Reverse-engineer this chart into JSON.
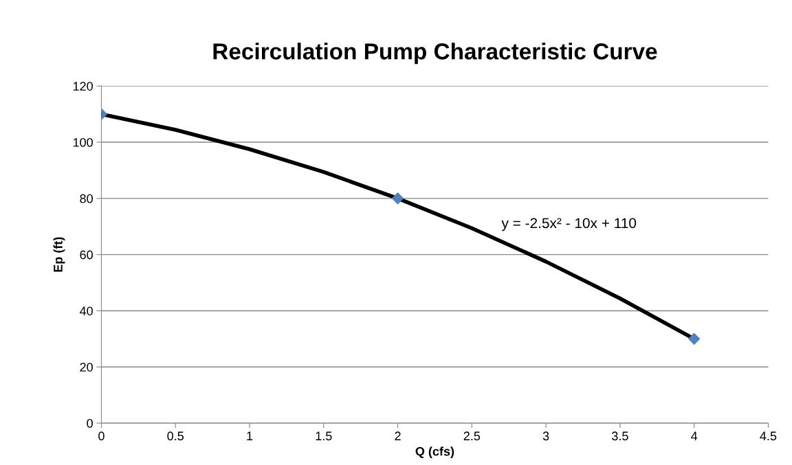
{
  "chart_data": {
    "type": "scatter",
    "title": "Recirculation Pump Characteristic Curve",
    "xlabel": "Q (cfs)",
    "ylabel": "Ep (ft)",
    "x": [
      0,
      2,
      4
    ],
    "series": [
      {
        "type": "line",
        "color": "#000000",
        "marker": "none",
        "x": [
          0,
          0.5,
          1,
          1.5,
          2,
          2.5,
          3,
          3.5,
          4
        ],
        "values": [
          110,
          104.4,
          97.5,
          89.4,
          80,
          69.4,
          57.5,
          44.4,
          30
        ]
      },
      {
        "color": "#4f81bd",
        "marker": "diamond",
        "values": [
          110,
          80,
          30
        ]
      }
    ],
    "annotations": [
      "y = -2.5x² - 10x + 110"
    ],
    "xlim": [
      0,
      4.5
    ],
    "xticks": [
      0,
      0.5,
      1,
      1.5,
      2,
      2.5,
      3,
      3.5,
      4,
      4.5
    ],
    "ylim": [
      0,
      120
    ],
    "yticks": [
      0,
      20,
      40,
      60,
      80,
      100,
      120
    ],
    "grid": "y",
    "legend": false
  }
}
